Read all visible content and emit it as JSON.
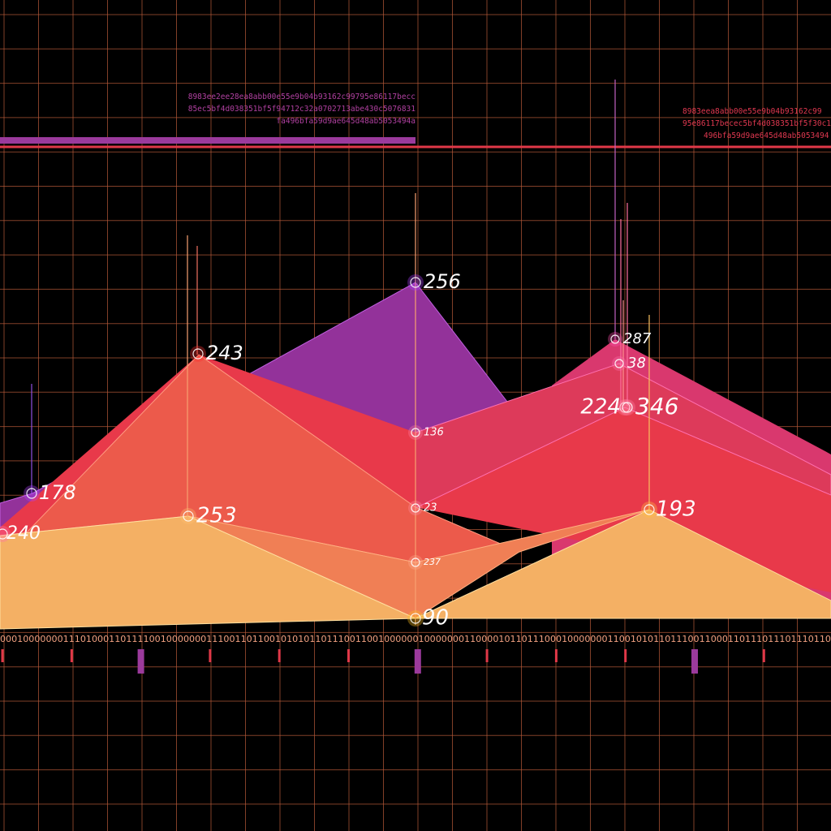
{
  "hex_left": [
    "8983ee2ee28ea8abb00e55e9b04b93162c99795e86117becc",
    "85ec5bf4d038351bf5f94712c32a0702713abe430c5076831",
    "fa496bfa59d9ae645d48ab5053494a"
  ],
  "hex_right": [
    "8983eea8abb00e55e9b04b93162c99",
    "95e86117becec5bf4d038351bf5f30c1",
    "496bfa59d9ae645d48ab5053494"
  ],
  "binary": "0001000000011101000110111100100000001110011011001010101101110011001000000100000001100001011011100010000000110010101101110011000110111011101110110",
  "points": [
    {
      "label": "256"
    },
    {
      "label": "243"
    },
    {
      "label": "178"
    },
    {
      "label": "240"
    },
    {
      "label": "253"
    },
    {
      "label": "90"
    },
    {
      "label": "136"
    },
    {
      "label": "23"
    },
    {
      "label": "237"
    },
    {
      "label": "287"
    },
    {
      "label": "38"
    },
    {
      "label": "224"
    },
    {
      "label": "346"
    },
    {
      "label": "193"
    }
  ]
}
